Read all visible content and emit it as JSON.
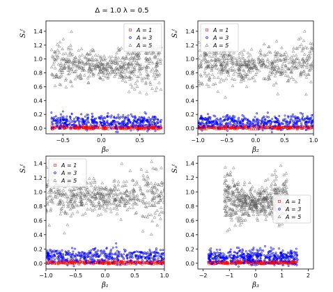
{
  "suptitle": "Δ = 1.0    λ = 0.5",
  "chart_data": [
    {
      "type": "scatter",
      "xlabel": "β₀",
      "ylabel": "Sₐᵗ",
      "xlim": [
        -0.72,
        0.82
      ],
      "ylim": [
        -0.08,
        1.55
      ],
      "xticks": [
        -0.5,
        0.0,
        0.5
      ],
      "yticks": [
        0.0,
        0.2,
        0.4,
        0.6,
        0.8,
        1.0,
        1.2,
        1.4
      ],
      "legend_position": "upper-right",
      "series": [
        {
          "name": "A = 1",
          "marker": "square",
          "color": "#ff0000",
          "x_range": [
            -0.65,
            0.78
          ],
          "y_center": 0.01,
          "y_spread": 0.012,
          "count": 260
        },
        {
          "name": "A = 3",
          "marker": "dot",
          "color": "#0000ff",
          "x_range": [
            -0.65,
            0.78
          ],
          "y_center": 0.09,
          "y_spread": 0.05,
          "count": 420
        },
        {
          "name": "A = 5",
          "marker": "triangle",
          "color": "#000000",
          "x_range": [
            -0.65,
            0.78
          ],
          "y_center": 0.88,
          "y_spread": 0.12,
          "count": 560
        }
      ]
    },
    {
      "type": "scatter",
      "xlabel": "β₂",
      "ylabel": "Sₐᵗ",
      "xlim": [
        -1.0,
        1.0
      ],
      "ylim": [
        -0.08,
        1.55
      ],
      "xticks": [
        -1.0,
        -0.5,
        0.0,
        0.5,
        1.0
      ],
      "yticks": [
        0.0,
        0.2,
        0.4,
        0.6,
        0.8,
        1.0,
        1.2,
        1.4
      ],
      "legend_position": "upper-left",
      "series": [
        {
          "name": "A = 1",
          "marker": "square",
          "color": "#ff0000",
          "x_range": [
            -1.0,
            1.0
          ],
          "y_center": 0.01,
          "y_spread": 0.012,
          "count": 260
        },
        {
          "name": "A = 3",
          "marker": "dot",
          "color": "#0000ff",
          "x_range": [
            -1.0,
            1.0
          ],
          "y_center": 0.09,
          "y_spread": 0.05,
          "count": 420
        },
        {
          "name": "A = 5",
          "marker": "triangle",
          "color": "#000000",
          "x_range": [
            -1.0,
            1.0
          ],
          "y_center": 0.9,
          "y_spread": 0.12,
          "count": 560
        }
      ]
    },
    {
      "type": "scatter",
      "xlabel": "β₁",
      "ylabel": "Sₐᵗ",
      "xlim": [
        -1.0,
        1.0
      ],
      "ylim": [
        -0.08,
        1.5
      ],
      "xticks": [
        -1.0,
        -0.5,
        0.0,
        0.5,
        1.0
      ],
      "yticks": [
        0.0,
        0.2,
        0.4,
        0.6,
        0.8,
        1.0,
        1.2,
        1.4
      ],
      "legend_position": "upper-left",
      "series": [
        {
          "name": "A = 1",
          "marker": "square",
          "color": "#ff0000",
          "x_range": [
            -1.0,
            1.0
          ],
          "y_center": 0.01,
          "y_spread": 0.012,
          "count": 260
        },
        {
          "name": "A = 3",
          "marker": "dot",
          "color": "#0000ff",
          "x_range": [
            -1.0,
            1.0
          ],
          "y_center": 0.1,
          "y_spread": 0.05,
          "count": 420
        },
        {
          "name": "A = 5",
          "marker": "triangle",
          "color": "#000000",
          "x_range": [
            -1.0,
            1.0
          ],
          "y_center": 0.92,
          "y_spread": 0.13,
          "count": 560
        }
      ]
    },
    {
      "type": "scatter",
      "xlabel": "β₃",
      "ylabel": "Sₐᵗ",
      "xlim": [
        -2.2,
        2.2
      ],
      "ylim": [
        -0.08,
        1.5
      ],
      "xticks": [
        -2,
        -1,
        0,
        1,
        2
      ],
      "yticks": [
        0.0,
        0.2,
        0.4,
        0.6,
        0.8,
        1.0,
        1.2,
        1.4
      ],
      "legend_position": "center-right",
      "series": [
        {
          "name": "A = 1",
          "marker": "square",
          "color": "#ff0000",
          "x_range": [
            -1.8,
            1.6
          ],
          "y_center": 0.01,
          "y_spread": 0.012,
          "count": 260
        },
        {
          "name": "A = 3",
          "marker": "dot",
          "color": "#0000ff",
          "x_range": [
            -1.8,
            1.6
          ],
          "y_center": 0.09,
          "y_spread": 0.05,
          "count": 420
        },
        {
          "name": "A = 5",
          "marker": "triangle",
          "color": "#000000",
          "x_range": [
            -1.2,
            1.2
          ],
          "y_center": 0.85,
          "y_spread": 0.12,
          "count": 560
        }
      ]
    }
  ]
}
